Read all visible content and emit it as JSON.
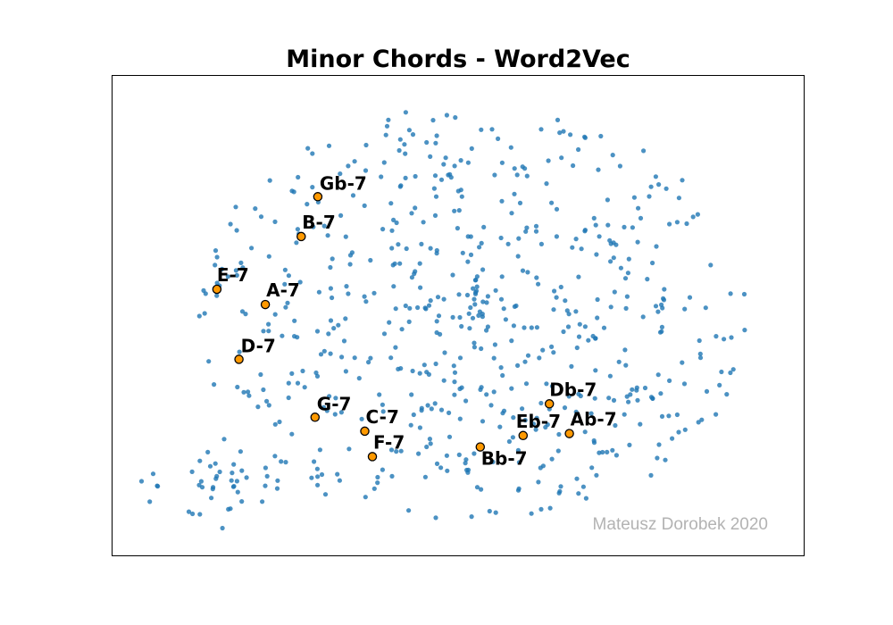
{
  "chart_data": {
    "type": "scatter",
    "title": "Minor Chords - Word2Vec",
    "xlabel": "",
    "ylabel": "",
    "axes_visible": false,
    "grid": false,
    "xlim": [
      0,
      100
    ],
    "ylim": [
      0,
      100
    ],
    "watermark": "Mateusz Dorobek 2020",
    "colors": {
      "points": "#1f77b4",
      "highlight": "#ff9900",
      "highlight_edge": "#000000",
      "watermark": "#b3b3b3"
    },
    "highlighted": [
      {
        "label": "Gb-7",
        "x": 29.7,
        "y": 74.8
      },
      {
        "label": "B-7",
        "x": 27.3,
        "y": 66.5
      },
      {
        "label": "E-7",
        "x": 15.1,
        "y": 55.5
      },
      {
        "label": "A-7",
        "x": 22.1,
        "y": 52.3
      },
      {
        "label": "D-7",
        "x": 18.3,
        "y": 40.9
      },
      {
        "label": "G-7",
        "x": 29.3,
        "y": 28.8
      },
      {
        "label": "C-7",
        "x": 36.5,
        "y": 25.9
      },
      {
        "label": "F-7",
        "x": 37.6,
        "y": 20.6
      },
      {
        "label": "Db-7",
        "x": 63.2,
        "y": 31.6
      },
      {
        "label": "Eb-7",
        "x": 59.4,
        "y": 25.0
      },
      {
        "label": "Ab-7",
        "x": 66.1,
        "y": 25.4
      },
      {
        "label": "Bb-7",
        "x": 53.2,
        "y": 22.6
      }
    ],
    "background_points_count": 650,
    "background_points_description": "unlabeled embedding points; dense cloud centered near (52, 50) with a separate cluster at lower-left near (16, 15)"
  }
}
